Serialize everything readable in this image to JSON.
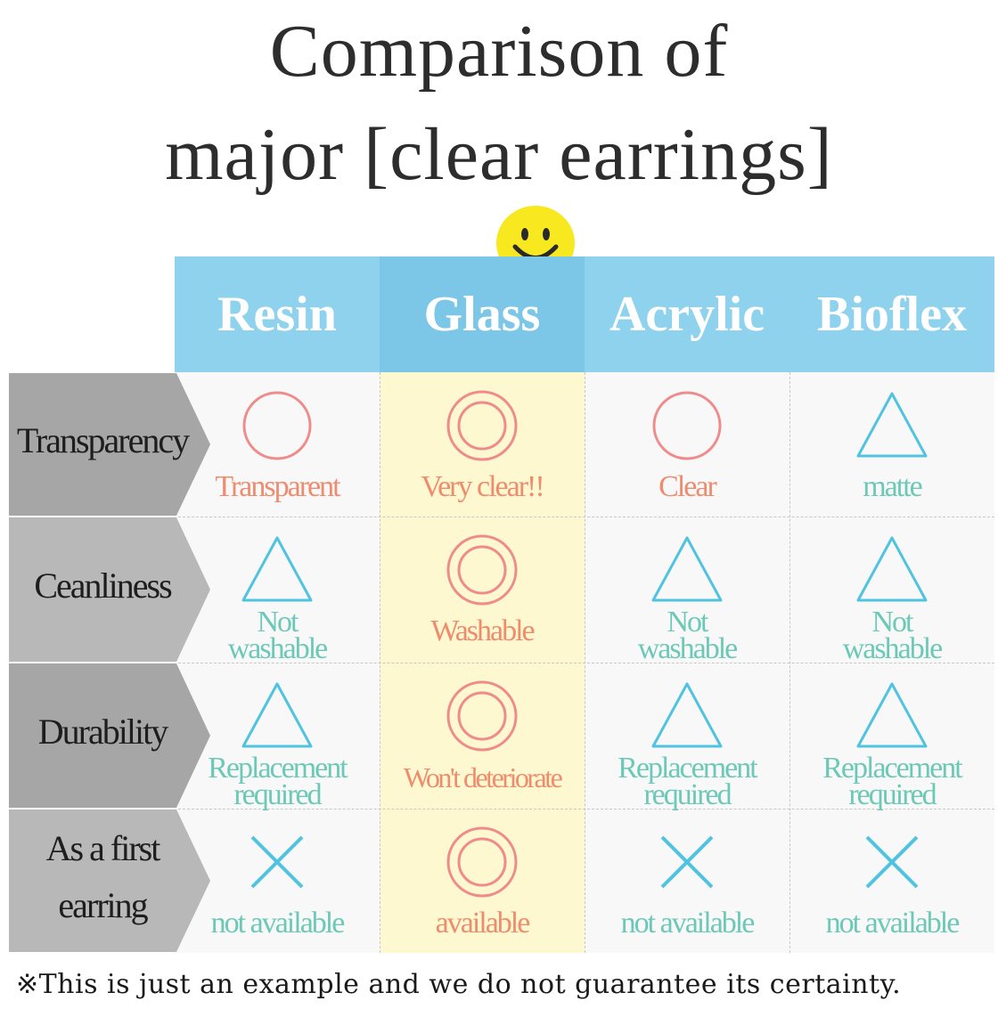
{
  "title": {
    "line1": "Comparison of",
    "line2": "major [clear earrings]"
  },
  "colors": {
    "header_blue": "#8fd2ee",
    "header_blue_dark": "#7cc7e8",
    "glass_highlight": "#fdf8cf",
    "good_red": "#ef8b8b",
    "good_text": "#ef8c6e",
    "fair_blue": "#4fc3e0",
    "fair_text": "#6cc9b8",
    "label_gray": "#b8b8b8",
    "label_gray_dark": "#a6a6a6",
    "smiley_yellow": "#f7e820"
  },
  "columns": [
    "Resin",
    "Glass",
    "Acrylic",
    "Bioflex"
  ],
  "rows": [
    {
      "label": [
        "Transparency"
      ],
      "cells": [
        {
          "icon": "circle-icon",
          "text": [
            "Transparent"
          ]
        },
        {
          "icon": "double-circle-icon",
          "text": [
            "Very clear!!"
          ]
        },
        {
          "icon": "circle-icon",
          "text": [
            "Clear"
          ]
        },
        {
          "icon": "triangle-icon",
          "text": [
            "matte"
          ]
        }
      ]
    },
    {
      "label": [
        "Ceanliness"
      ],
      "cells": [
        {
          "icon": "triangle-icon",
          "text": [
            "Not",
            "washable"
          ]
        },
        {
          "icon": "double-circle-icon",
          "text": [
            "Washable"
          ]
        },
        {
          "icon": "triangle-icon",
          "text": [
            "Not",
            "washable"
          ]
        },
        {
          "icon": "triangle-icon",
          "text": [
            "Not",
            "washable"
          ]
        }
      ]
    },
    {
      "label": [
        "Durability"
      ],
      "cells": [
        {
          "icon": "triangle-icon",
          "text": [
            "Replacement",
            "required"
          ]
        },
        {
          "icon": "double-circle-icon",
          "text": [
            "Won't deteriorate"
          ]
        },
        {
          "icon": "triangle-icon",
          "text": [
            "Replacement",
            "required"
          ]
        },
        {
          "icon": "triangle-icon",
          "text": [
            "Replacement",
            "required"
          ]
        }
      ]
    },
    {
      "label": [
        "As a first",
        "earring"
      ],
      "cells": [
        {
          "icon": "cross-icon",
          "text": [
            "not available"
          ]
        },
        {
          "icon": "double-circle-icon",
          "text": [
            "available"
          ]
        },
        {
          "icon": "cross-icon",
          "text": [
            "not available"
          ]
        },
        {
          "icon": "cross-icon",
          "text": [
            "not available"
          ]
        }
      ]
    }
  ],
  "footnote": "※This is just an example and we do not guarantee its certainty."
}
